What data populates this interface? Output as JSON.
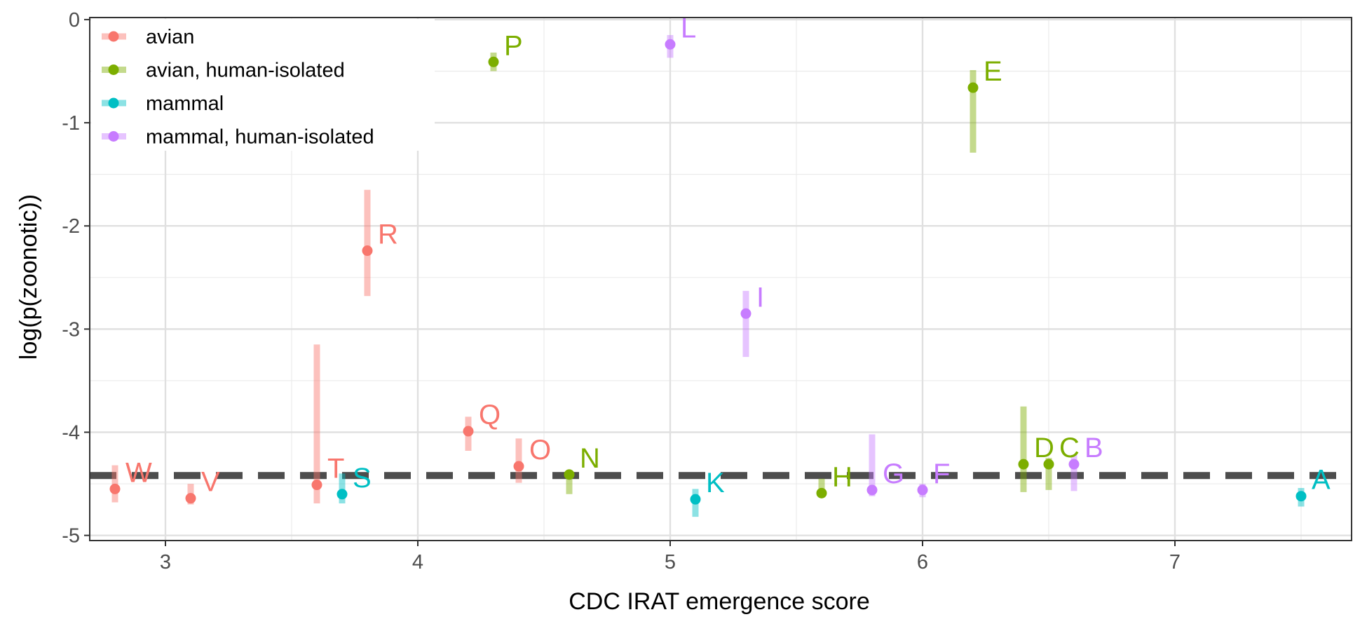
{
  "chart_data": {
    "type": "scatter",
    "xlabel": "CDC IRAT emergence score",
    "ylabel": "log(p(zoonotic))",
    "xlim": [
      2.7,
      7.7
    ],
    "ylim": [
      -5.05,
      0.02
    ],
    "x_ticks": [
      3,
      4,
      5,
      6,
      7
    ],
    "y_ticks": [
      0,
      -1,
      -2,
      -3,
      -4,
      -5
    ],
    "x_tick_labels": [
      "3",
      "4",
      "5",
      "6",
      "7"
    ],
    "y_tick_labels": [
      "0",
      "-1",
      "-2",
      "-3",
      "-4",
      "-5"
    ],
    "grid": true,
    "legend_position": "top-left",
    "reference_line": {
      "type": "horizontal",
      "style": "dashed",
      "y": -4.42,
      "color": "#4d4d4d"
    },
    "groups": [
      {
        "name": "avian",
        "color": "#F8766D"
      },
      {
        "name": "avian, human-isolated",
        "color": "#7CAE00"
      },
      {
        "name": "mammal",
        "color": "#00BFC4"
      },
      {
        "name": "mammal, human-isolated",
        "color": "#C77CFF"
      }
    ],
    "points": [
      {
        "label": "W",
        "group": "avian",
        "x": 2.8,
        "y": -4.55,
        "low": -4.68,
        "high": -4.32
      },
      {
        "label": "V",
        "group": "avian",
        "x": 3.1,
        "y": -4.64,
        "low": -4.7,
        "high": -4.5
      },
      {
        "label": "T",
        "group": "avian",
        "x": 3.6,
        "y": -4.51,
        "low": -4.69,
        "high": -3.15
      },
      {
        "label": "R",
        "group": "avian",
        "x": 3.8,
        "y": -2.24,
        "low": -2.68,
        "high": -1.65
      },
      {
        "label": "Q",
        "group": "avian",
        "x": 4.2,
        "y": -3.99,
        "low": -4.18,
        "high": -3.85
      },
      {
        "label": "O",
        "group": "avian",
        "x": 4.4,
        "y": -4.33,
        "low": -4.49,
        "high": -4.06
      },
      {
        "label": "P",
        "group": "avian, human-isolated",
        "x": 4.3,
        "y": -0.41,
        "low": -0.5,
        "high": -0.32
      },
      {
        "label": "N",
        "group": "avian, human-isolated",
        "x": 4.6,
        "y": -4.41,
        "low": -4.6,
        "high": -4.38
      },
      {
        "label": "H",
        "group": "avian, human-isolated",
        "x": 5.6,
        "y": -4.59,
        "low": -4.63,
        "high": -4.45
      },
      {
        "label": "E",
        "group": "avian, human-isolated",
        "x": 6.2,
        "y": -0.66,
        "low": -1.29,
        "high": -0.49
      },
      {
        "label": "D",
        "group": "avian, human-isolated",
        "x": 6.4,
        "y": -4.31,
        "low": -4.58,
        "high": -3.75
      },
      {
        "label": "C",
        "group": "avian, human-isolated",
        "x": 6.5,
        "y": -4.31,
        "low": -4.56,
        "high": -4.25
      },
      {
        "label": "S",
        "group": "mammal",
        "x": 3.7,
        "y": -4.6,
        "low": -4.69,
        "high": -4.4
      },
      {
        "label": "K",
        "group": "mammal",
        "x": 5.1,
        "y": -4.65,
        "low": -4.82,
        "high": -4.55
      },
      {
        "label": "A",
        "group": "mammal",
        "x": 7.5,
        "y": -4.62,
        "low": -4.72,
        "high": -4.54
      },
      {
        "label": "L",
        "group": "mammal, human-isolated",
        "x": 5.0,
        "y": -0.24,
        "low": -0.37,
        "high": -0.15
      },
      {
        "label": "I",
        "group": "mammal, human-isolated",
        "x": 5.3,
        "y": -2.85,
        "low": -3.27,
        "high": -2.63
      },
      {
        "label": "G",
        "group": "mammal, human-isolated",
        "x": 5.8,
        "y": -4.56,
        "low": -4.62,
        "high": -4.02
      },
      {
        "label": "F",
        "group": "mammal, human-isolated",
        "x": 6.0,
        "y": -4.56,
        "low": -4.63,
        "high": -4.5
      },
      {
        "label": "B",
        "group": "mammal, human-isolated",
        "x": 6.6,
        "y": -4.31,
        "low": -4.57,
        "high": -4.22
      }
    ]
  }
}
